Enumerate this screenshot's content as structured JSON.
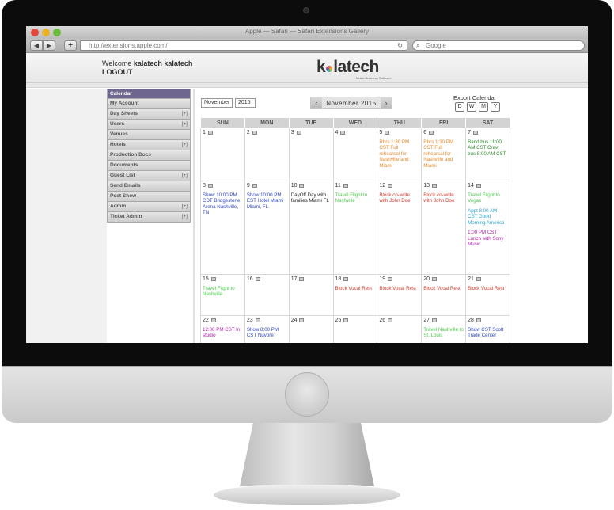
{
  "browser": {
    "window_title": "Apple — Safari — Safari Extensions Gallery",
    "url": "http://extensions.apple.com/",
    "search_placeholder": "Google",
    "back_glyph": "◀",
    "forward_glyph": "▶",
    "add_glyph": "+",
    "reload_glyph": "↻",
    "search_glyph": "⌕"
  },
  "header": {
    "welcome_prefix": "Welcome ",
    "username": "kalatech kalatech",
    "logout": "LOGOUT",
    "logo_pre": "k",
    "logo_post": "latech",
    "logo_tagline": "Music Business Software"
  },
  "sidebar": {
    "items": [
      {
        "label": "Calendar",
        "plus": ""
      },
      {
        "label": "My Account",
        "plus": ""
      },
      {
        "label": "Day Sheets",
        "plus": "[+]"
      },
      {
        "label": "Users",
        "plus": "[+]"
      },
      {
        "label": "Venues",
        "plus": ""
      },
      {
        "label": "Hotels",
        "plus": "[+]"
      },
      {
        "label": "Production Docs",
        "plus": ""
      },
      {
        "label": "Documents",
        "plus": ""
      },
      {
        "label": "Guest List",
        "plus": "[+]"
      },
      {
        "label": "Send Emails",
        "plus": ""
      },
      {
        "label": "Post Show",
        "plus": ""
      },
      {
        "label": "Admin",
        "plus": "[+]"
      },
      {
        "label": "Ticket Admin",
        "plus": "[+]"
      }
    ]
  },
  "calendar": {
    "month_select": "November",
    "year_select": "2015",
    "month_label": "November 2015",
    "prev_glyph": "‹",
    "next_glyph": "›",
    "export_label": "Export Calendar",
    "export_buttons": [
      "D",
      "W",
      "M",
      "Y"
    ],
    "weekdays": [
      "SUN",
      "MON",
      "TUE",
      "WED",
      "THU",
      "FRI",
      "SAT"
    ],
    "colors": {
      "orange": "#e8892a",
      "green": "#4cc94c",
      "blue": "#2d45c9",
      "dark": "#222222",
      "red": "#d63a2a",
      "cyan": "#29a3d6",
      "magenta": "#b21fb2",
      "darkgreen": "#2d8a2d"
    },
    "weeks": [
      [
        {
          "day": "1",
          "events": []
        },
        {
          "day": "2",
          "events": []
        },
        {
          "day": "3",
          "events": []
        },
        {
          "day": "4",
          "events": []
        },
        {
          "day": "5",
          "events": [
            {
              "text": "Rhrs 1:30 PM CST Full rehearsal for Nashville and Miami",
              "color": "orange"
            }
          ]
        },
        {
          "day": "6",
          "events": [
            {
              "text": "Rhrs 1:30 PM CST Full rehearsal for Nashville and Miami",
              "color": "orange"
            }
          ]
        },
        {
          "day": "7",
          "events": [
            {
              "text": "Band bus 11:00 AM CST Crew bus 8:00 AM CST",
              "color": "darkgreen"
            }
          ]
        }
      ],
      [
        {
          "day": "8",
          "events": [
            {
              "text": "Show 10:00 PM CDT Bridgestone Arena Nashville, TN",
              "color": "blue"
            }
          ]
        },
        {
          "day": "9",
          "events": [
            {
              "text": "Show 10:00 PM EST Hotel Miami Miami, FL",
              "color": "blue"
            }
          ]
        },
        {
          "day": "10",
          "events": [
            {
              "text": "DayOff Day with families Miami FL",
              "color": "dark"
            }
          ]
        },
        {
          "day": "11",
          "events": [
            {
              "text": "Travel Flight to Nashville",
              "color": "green"
            }
          ]
        },
        {
          "day": "12",
          "events": [
            {
              "text": "Block co-write with John Doe",
              "color": "red"
            }
          ]
        },
        {
          "day": "13",
          "events": [
            {
              "text": "Block co-write with John Doe",
              "color": "red"
            }
          ]
        },
        {
          "day": "14",
          "events": [
            {
              "text": "Travel Flight to Vegas",
              "color": "green"
            },
            {
              "text": "Appt 8:00 AM CST Good Morning America",
              "color": "cyan"
            },
            {
              "text": "1:00 PM CST Lunch with Sony Music",
              "color": "magenta"
            }
          ]
        }
      ],
      [
        {
          "day": "15",
          "events": [
            {
              "text": "Travel Flight to Nashville",
              "color": "green"
            }
          ]
        },
        {
          "day": "16",
          "events": []
        },
        {
          "day": "17",
          "events": []
        },
        {
          "day": "18",
          "events": [
            {
              "text": "Block Vocal Rest",
              "color": "red"
            }
          ]
        },
        {
          "day": "19",
          "events": [
            {
              "text": "Block Vocal Rest",
              "color": "red"
            }
          ]
        },
        {
          "day": "20",
          "events": [
            {
              "text": "Block Vocal Rest",
              "color": "red"
            }
          ]
        },
        {
          "day": "21",
          "events": [
            {
              "text": "Block Vocal Rest",
              "color": "red"
            }
          ]
        }
      ],
      [
        {
          "day": "22",
          "events": [
            {
              "text": "12:00 PM CST In studio",
              "color": "magenta"
            }
          ]
        },
        {
          "day": "23",
          "events": [
            {
              "text": "Show 8:00 PM CST Nuvore",
              "color": "blue"
            }
          ]
        },
        {
          "day": "24",
          "events": []
        },
        {
          "day": "25",
          "events": []
        },
        {
          "day": "26",
          "events": []
        },
        {
          "day": "27",
          "events": [
            {
              "text": "Travel Nashville to St. Louis",
              "color": "green"
            }
          ]
        },
        {
          "day": "28",
          "events": [
            {
              "text": "Show CST Scott Trade Center",
              "color": "blue"
            }
          ]
        }
      ]
    ]
  }
}
